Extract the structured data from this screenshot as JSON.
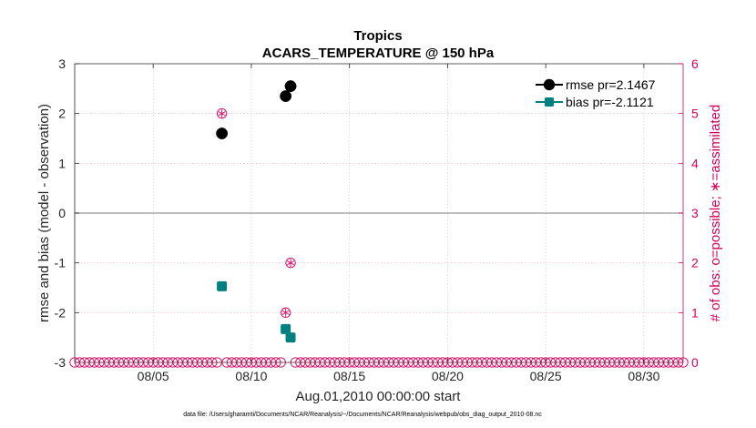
{
  "chart_data": {
    "type": "scatter",
    "title": "Tropics",
    "subtitle": "ACARS_TEMPERATURE @ 150 hPa",
    "xlabel": "Aug.01,2010 00:00:00 start",
    "ylabel": "rmse and bias (model - observation)",
    "ylabel_right": "# of obs: o=possible; ∗=assimilated",
    "footnote": "data file: /Users/gharamti/Documents/NCAR/Reanalysis/~/Documents/NCAR/Reanalysis/webpub/obs_diag_output_2010-08.nc",
    "xlim": [
      1,
      32
    ],
    "ylim": [
      -3,
      3
    ],
    "ylim_right": [
      0,
      6
    ],
    "x_ticks": [
      5,
      10,
      15,
      20,
      25,
      30
    ],
    "x_tick_labels": [
      "08/05",
      "08/10",
      "08/15",
      "08/20",
      "08/25",
      "08/30"
    ],
    "y_ticks": [
      "-3",
      "-2",
      "-1",
      "0",
      "1",
      "2",
      "3"
    ],
    "y_right_ticks": [
      "0",
      "1",
      "2",
      "3",
      "4",
      "5",
      "6"
    ],
    "grid": true,
    "legend_position": "top-right",
    "series": [
      {
        "name": "rmse",
        "legend_label": "rmse pr=2.1467",
        "color": "#000000",
        "marker": "circle",
        "axis": "left",
        "x": [
          8.5,
          11.75,
          12.0
        ],
        "y": [
          1.6,
          2.35,
          2.55
        ]
      },
      {
        "name": "bias",
        "legend_label": "bias pr=-2.1121",
        "color": "#008080",
        "marker": "square",
        "axis": "left",
        "x": [
          8.5,
          11.75,
          12.0
        ],
        "y": [
          -1.47,
          -2.33,
          -2.5
        ]
      },
      {
        "name": "obs possible",
        "color": "#d6005c",
        "marker": "open-circle",
        "axis": "right",
        "x_start": 1.0,
        "x_step": 0.25,
        "x_end": 32.0,
        "value_default": 0,
        "nonzero_x": [
          8.5,
          11.75,
          12.0
        ],
        "nonzero_values": [
          5,
          1,
          2
        ]
      },
      {
        "name": "obs assimilated",
        "color": "#d6005c",
        "marker": "asterisk",
        "axis": "right",
        "x": [
          8.5,
          11.75,
          12.0
        ],
        "values": [
          5,
          1,
          2
        ]
      }
    ]
  }
}
